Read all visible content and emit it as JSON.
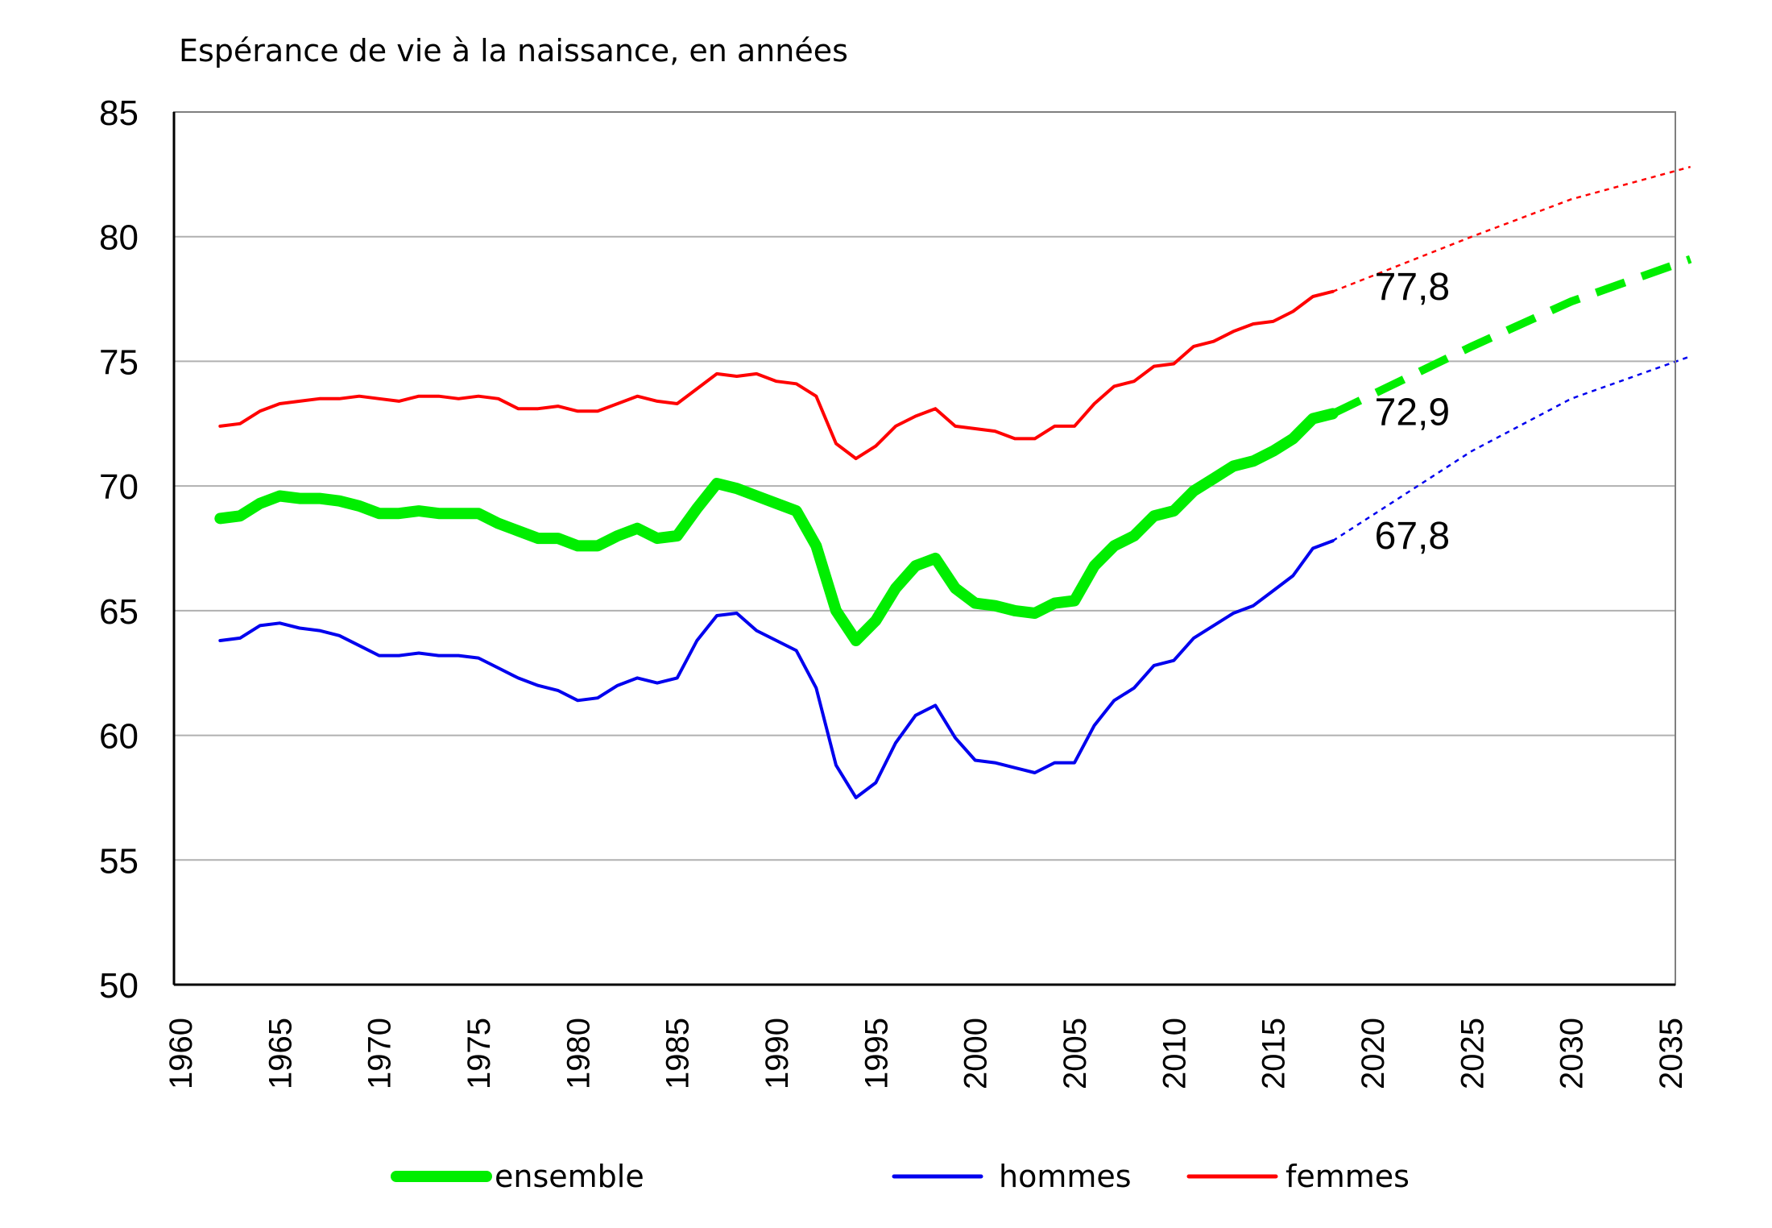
{
  "chart_data": {
    "type": "line",
    "title": "Espérance de vie à la naissance, en années",
    "xlabel": "",
    "ylabel": "",
    "xlim": [
      1960,
      2036
    ],
    "ylim": [
      50,
      85
    ],
    "yticks": [
      "50",
      "55",
      "60",
      "65",
      "70",
      "75",
      "80",
      "85"
    ],
    "xticks": [
      "1960",
      "1965",
      "1970",
      "1975",
      "1980",
      "1985",
      "1990",
      "1995",
      "2000",
      "2005",
      "2010",
      "2015",
      "2020",
      "2025",
      "2030",
      "2035"
    ],
    "grid": true,
    "legend_position": "bottom",
    "series": [
      {
        "name": "femmes",
        "color": "#ff0000",
        "x": [
          1962,
          1963,
          1964,
          1965,
          1966,
          1967,
          1968,
          1969,
          1970,
          1971,
          1972,
          1973,
          1974,
          1975,
          1976,
          1977,
          1978,
          1979,
          1980,
          1981,
          1982,
          1983,
          1984,
          1985,
          1986,
          1987,
          1988,
          1989,
          1990,
          1991,
          1992,
          1993,
          1994,
          1995,
          1996,
          1997,
          1998,
          1999,
          2000,
          2001,
          2002,
          2003,
          2004,
          2005,
          2006,
          2007,
          2008,
          2009,
          2010,
          2011,
          2012,
          2013,
          2014,
          2015,
          2016,
          2017,
          2018
        ],
        "values": [
          72.4,
          72.5,
          73.0,
          73.3,
          73.4,
          73.5,
          73.5,
          73.6,
          73.5,
          73.4,
          73.6,
          73.6,
          73.5,
          73.6,
          73.5,
          73.1,
          73.1,
          73.2,
          73.0,
          73.0,
          73.3,
          73.6,
          73.4,
          73.3,
          73.9,
          74.5,
          74.4,
          74.5,
          74.2,
          74.1,
          73.6,
          71.7,
          71.1,
          71.6,
          72.4,
          72.8,
          73.1,
          72.4,
          72.3,
          72.2,
          71.9,
          71.9,
          72.4,
          72.4,
          73.3,
          74.0,
          74.2,
          74.8,
          74.9,
          75.6,
          75.8,
          76.2,
          76.5,
          76.6,
          77.0,
          77.6,
          77.8
        ],
        "end_label": "77,8",
        "projection": {
          "x": [
            2018,
            2025,
            2030,
            2036
          ],
          "values": [
            77.8,
            80.0,
            81.5,
            82.8
          ]
        }
      },
      {
        "name": "ensemble",
        "color": "#00ee00",
        "x": [
          1962,
          1963,
          1964,
          1965,
          1966,
          1967,
          1968,
          1969,
          1970,
          1971,
          1972,
          1973,
          1974,
          1975,
          1976,
          1977,
          1978,
          1979,
          1980,
          1981,
          1982,
          1983,
          1984,
          1985,
          1986,
          1987,
          1988,
          1989,
          1990,
          1991,
          1992,
          1993,
          1994,
          1995,
          1996,
          1997,
          1998,
          1999,
          2000,
          2001,
          2002,
          2003,
          2004,
          2005,
          2006,
          2007,
          2008,
          2009,
          2010,
          2011,
          2012,
          2013,
          2014,
          2015,
          2016,
          2017,
          2018
        ],
        "values": [
          68.7,
          68.8,
          69.3,
          69.6,
          69.5,
          69.5,
          69.4,
          69.2,
          68.9,
          68.9,
          69.0,
          68.9,
          68.9,
          68.9,
          68.5,
          68.2,
          67.9,
          67.9,
          67.6,
          67.6,
          68.0,
          68.3,
          67.9,
          68.0,
          69.1,
          70.1,
          69.9,
          69.6,
          69.3,
          69.0,
          67.6,
          65.0,
          63.8,
          64.6,
          65.9,
          66.8,
          67.1,
          65.9,
          65.3,
          65.2,
          65.0,
          64.9,
          65.3,
          65.4,
          66.8,
          67.6,
          68.0,
          68.8,
          69.0,
          69.8,
          70.3,
          70.8,
          71.0,
          71.4,
          71.9,
          72.7,
          72.9
        ],
        "end_label": "72,9",
        "projection": {
          "x": [
            2018,
            2025,
            2030,
            2036
          ],
          "values": [
            72.9,
            75.6,
            77.4,
            79.1
          ]
        }
      },
      {
        "name": "hommes",
        "color": "#0000ee",
        "x": [
          1962,
          1963,
          1964,
          1965,
          1966,
          1967,
          1968,
          1969,
          1970,
          1971,
          1972,
          1973,
          1974,
          1975,
          1976,
          1977,
          1978,
          1979,
          1980,
          1981,
          1982,
          1983,
          1984,
          1985,
          1986,
          1987,
          1988,
          1989,
          1990,
          1991,
          1992,
          1993,
          1994,
          1995,
          1996,
          1997,
          1998,
          1999,
          2000,
          2001,
          2002,
          2003,
          2004,
          2005,
          2006,
          2007,
          2008,
          2009,
          2010,
          2011,
          2012,
          2013,
          2014,
          2015,
          2016,
          2017,
          2018
        ],
        "values": [
          63.8,
          63.9,
          64.4,
          64.5,
          64.3,
          64.2,
          64.0,
          63.6,
          63.2,
          63.2,
          63.3,
          63.2,
          63.2,
          63.1,
          62.7,
          62.3,
          62.0,
          61.8,
          61.4,
          61.5,
          62.0,
          62.3,
          62.1,
          62.3,
          63.8,
          64.8,
          64.9,
          64.2,
          63.8,
          63.4,
          61.9,
          58.8,
          57.5,
          58.1,
          59.7,
          60.8,
          61.2,
          59.9,
          59.0,
          58.9,
          58.7,
          58.5,
          58.9,
          58.9,
          60.4,
          61.4,
          61.9,
          62.8,
          63.0,
          63.9,
          64.4,
          64.9,
          65.2,
          65.8,
          66.4,
          67.5,
          67.8
        ],
        "end_label": "67,8",
        "projection": {
          "x": [
            2018,
            2025,
            2030,
            2036
          ],
          "values": [
            67.8,
            71.4,
            73.5,
            75.2
          ]
        }
      }
    ],
    "legend": [
      {
        "name": "ensemble",
        "label": "ensemble",
        "color": "#00ee00"
      },
      {
        "name": "hommes",
        "label": "hommes",
        "color": "#0000ee"
      },
      {
        "name": "femmes",
        "label": "femmes",
        "color": "#ff0000"
      }
    ]
  }
}
